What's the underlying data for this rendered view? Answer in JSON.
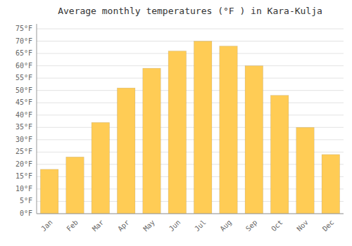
{
  "chart_data": {
    "type": "bar",
    "title": "Average monthly temperatures (°F ) in Kara-Kulja",
    "categories": [
      "Jan",
      "Feb",
      "Mar",
      "Apr",
      "May",
      "Jun",
      "Jul",
      "Aug",
      "Sep",
      "Oct",
      "Nov",
      "Dec"
    ],
    "values": [
      18,
      23,
      37,
      51,
      59,
      66,
      70,
      68,
      60,
      48,
      35,
      24
    ],
    "color": "#FFCC55",
    "ylim": [
      0,
      77
    ],
    "yticks": [
      {
        "value": 0,
        "label": "0°F"
      },
      {
        "value": 5,
        "label": "5°F"
      },
      {
        "value": 10,
        "label": "10°F"
      },
      {
        "value": 15,
        "label": "15°F"
      },
      {
        "value": 20,
        "label": "20°F"
      },
      {
        "value": 25,
        "label": "25°F"
      },
      {
        "value": 30,
        "label": "30°F"
      },
      {
        "value": 35,
        "label": "35°F"
      },
      {
        "value": 40,
        "label": "40°F"
      },
      {
        "value": 45,
        "label": "45°F"
      },
      {
        "value": 50,
        "label": "50°F"
      },
      {
        "value": 55,
        "label": "55°F"
      },
      {
        "value": 60,
        "label": "60°F"
      },
      {
        "value": 65,
        "label": "65°F"
      },
      {
        "value": 70,
        "label": "70°F"
      },
      {
        "value": 75,
        "label": "75°F"
      }
    ],
    "grid": true
  }
}
